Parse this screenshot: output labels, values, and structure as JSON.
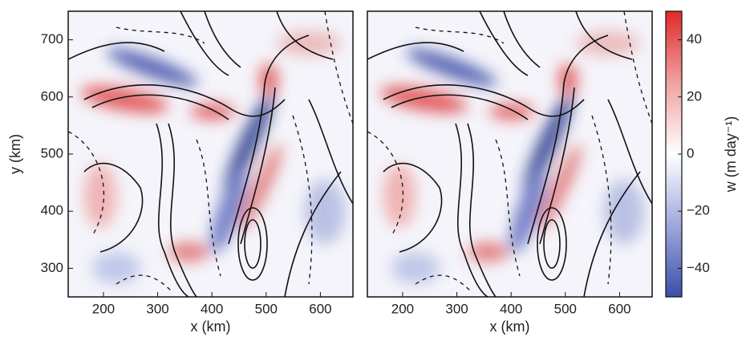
{
  "chart_data": [
    {
      "type": "heatmap",
      "xlabel": "x (km)",
      "ylabel": "y (km)",
      "xlim": [
        135,
        660
      ],
      "ylim": [
        250,
        750
      ],
      "xticks": [
        200,
        300,
        400,
        500,
        600
      ],
      "yticks": [
        300,
        400,
        500,
        600,
        700
      ]
    },
    {
      "type": "heatmap",
      "xlabel": "x (km)",
      "xlim": [
        135,
        660
      ],
      "ylim": [
        250,
        750
      ],
      "xticks": [
        200,
        300,
        400,
        500,
        600
      ]
    },
    {
      "type": "colorbar",
      "label": "w (m day⁻¹)",
      "lim": [
        -50,
        50
      ],
      "ticks": [
        {
          "value": -40,
          "label": "−40"
        },
        {
          "value": -20,
          "label": "−20"
        },
        0,
        20,
        40
      ],
      "colors": [
        "#3a4fa8",
        "#9fa8dc",
        "#ffffff",
        "#f0a0a0",
        "#e02a2a"
      ]
    }
  ]
}
